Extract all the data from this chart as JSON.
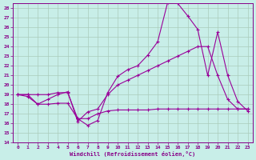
{
  "xlabel": "Windchill (Refroidissement éolien,°C)",
  "background_color": "#c8eee8",
  "grid_color": "#aaccbb",
  "line_color": "#990099",
  "xlim": [
    -0.5,
    23.5
  ],
  "ylim": [
    14,
    28.5
  ],
  "yticks": [
    14,
    15,
    16,
    17,
    18,
    19,
    20,
    21,
    22,
    23,
    24,
    25,
    26,
    27,
    28
  ],
  "xticks": [
    0,
    1,
    2,
    3,
    4,
    5,
    6,
    7,
    8,
    9,
    10,
    11,
    12,
    13,
    14,
    15,
    16,
    17,
    18,
    19,
    20,
    21,
    22,
    23
  ],
  "line1_x": [
    0,
    1,
    2,
    3,
    4,
    5,
    6,
    7,
    8,
    9,
    10,
    11,
    12,
    13,
    14,
    15,
    16,
    17,
    18,
    19,
    20,
    21,
    22,
    23
  ],
  "line1_y": [
    19.0,
    18.8,
    18.0,
    18.0,
    18.1,
    18.1,
    16.5,
    15.8,
    16.3,
    19.2,
    20.9,
    21.6,
    22.0,
    23.1,
    24.5,
    28.6,
    28.5,
    27.2,
    25.8,
    21.0,
    25.5,
    21.0,
    18.3,
    17.3
  ],
  "line2_x": [
    0,
    1,
    2,
    3,
    4,
    5,
    6,
    7,
    8,
    9,
    10,
    11,
    12,
    13,
    14,
    15,
    16,
    17,
    18,
    19,
    20,
    21,
    22,
    23
  ],
  "line2_y": [
    19.0,
    19.0,
    18.0,
    18.5,
    19.0,
    19.3,
    16.2,
    17.2,
    17.5,
    19.0,
    20.0,
    20.5,
    21.0,
    21.5,
    22.0,
    22.5,
    23.0,
    23.5,
    24.0,
    24.0,
    21.0,
    18.5,
    17.5,
    17.5
  ],
  "line3_x": [
    0,
    1,
    2,
    3,
    4,
    5,
    6,
    7,
    8,
    9,
    10,
    11,
    12,
    13,
    14,
    15,
    16,
    17,
    18,
    19,
    20,
    21,
    22,
    23
  ],
  "line3_y": [
    19.0,
    19.0,
    19.0,
    19.0,
    19.2,
    19.2,
    16.5,
    16.5,
    17.0,
    17.3,
    17.4,
    17.4,
    17.4,
    17.4,
    17.5,
    17.5,
    17.5,
    17.5,
    17.5,
    17.5,
    17.5,
    17.5,
    17.5,
    17.5
  ]
}
